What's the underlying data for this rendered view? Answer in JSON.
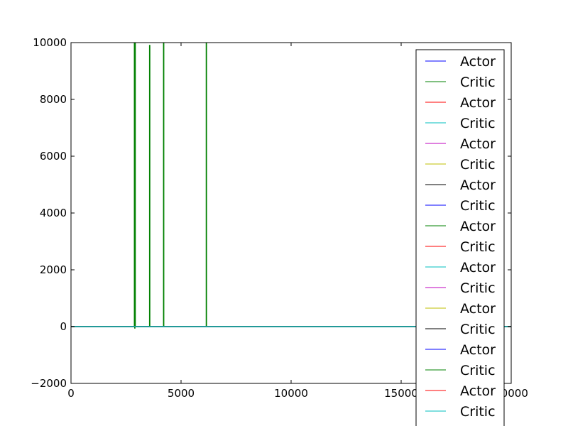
{
  "chart_data": {
    "type": "line",
    "title": "",
    "xlabel": "",
    "ylabel": "",
    "xlim": [
      0,
      20000
    ],
    "ylim": [
      -2000,
      10000
    ],
    "xticks": [
      0,
      5000,
      10000,
      15000,
      20000
    ],
    "xtick_labels": [
      "0",
      "5000",
      "10000",
      "15000",
      "20000"
    ],
    "yticks": [
      -2000,
      0,
      2000,
      4000,
      6000,
      8000,
      10000
    ],
    "ytick_labels": [
      "−2000",
      "0",
      "2000",
      "4000",
      "6000",
      "8000",
      "10000"
    ],
    "grid": false,
    "legend_placement": "upper-right, extends below axes",
    "series": [
      {
        "name": "Actor",
        "color": "#0000ff",
        "x": [
          0,
          20000
        ],
        "y": [
          0,
          0
        ]
      },
      {
        "name": "Critic",
        "color": "#008000",
        "x": [
          0,
          2880,
          2880,
          2895,
          2895,
          2905,
          2905,
          2920,
          2920,
          3570,
          3570,
          3580,
          3580,
          4205,
          4205,
          4215,
          4215,
          6145,
          6145,
          6155,
          6155,
          20000
        ],
        "y": [
          0,
          0,
          10000,
          10000,
          -50,
          -50,
          10000,
          10000,
          0,
          0,
          9900,
          9900,
          0,
          0,
          10000,
          10000,
          0,
          0,
          10000,
          10000,
          0,
          0
        ]
      },
      {
        "name": "Actor",
        "color": "#ff0000",
        "x": [
          0,
          20000
        ],
        "y": [
          0,
          0
        ]
      },
      {
        "name": "Critic",
        "color": "#00bfbf",
        "x": [
          0,
          20000
        ],
        "y": [
          0,
          0
        ]
      },
      {
        "name": "Actor",
        "color": "#bf00bf",
        "x": [
          0,
          20000
        ],
        "y": [
          0,
          0
        ]
      },
      {
        "name": "Critic",
        "color": "#bfbf00",
        "x": [
          0,
          20000
        ],
        "y": [
          0,
          0
        ]
      },
      {
        "name": "Actor",
        "color": "#000000",
        "x": [
          0,
          20000
        ],
        "y": [
          0,
          0
        ]
      },
      {
        "name": "Critic",
        "color": "#0000ff",
        "x": [
          0,
          20000
        ],
        "y": [
          0,
          0
        ]
      },
      {
        "name": "Actor",
        "color": "#008000",
        "x": [
          0,
          20000
        ],
        "y": [
          0,
          0
        ]
      },
      {
        "name": "Critic",
        "color": "#ff0000",
        "x": [
          0,
          20000
        ],
        "y": [
          0,
          0
        ]
      },
      {
        "name": "Actor",
        "color": "#00bfbf",
        "x": [
          0,
          20000
        ],
        "y": [
          0,
          0
        ]
      },
      {
        "name": "Critic",
        "color": "#bf00bf",
        "x": [
          0,
          20000
        ],
        "y": [
          0,
          0
        ]
      },
      {
        "name": "Actor",
        "color": "#bfbf00",
        "x": [
          0,
          20000
        ],
        "y": [
          0,
          0
        ]
      },
      {
        "name": "Critic",
        "color": "#000000",
        "x": [
          0,
          20000
        ],
        "y": [
          0,
          0
        ]
      },
      {
        "name": "Actor",
        "color": "#0000ff",
        "x": [
          0,
          20000
        ],
        "y": [
          0,
          0
        ]
      },
      {
        "name": "Critic",
        "color": "#008000",
        "x": [
          0,
          20000
        ],
        "y": [
          0,
          0
        ]
      },
      {
        "name": "Actor",
        "color": "#ff0000",
        "x": [
          0,
          20000
        ],
        "y": [
          0,
          0
        ]
      },
      {
        "name": "Critic",
        "color": "#00bfbf",
        "x": [
          0,
          20000
        ],
        "y": [
          0,
          0
        ]
      }
    ]
  }
}
